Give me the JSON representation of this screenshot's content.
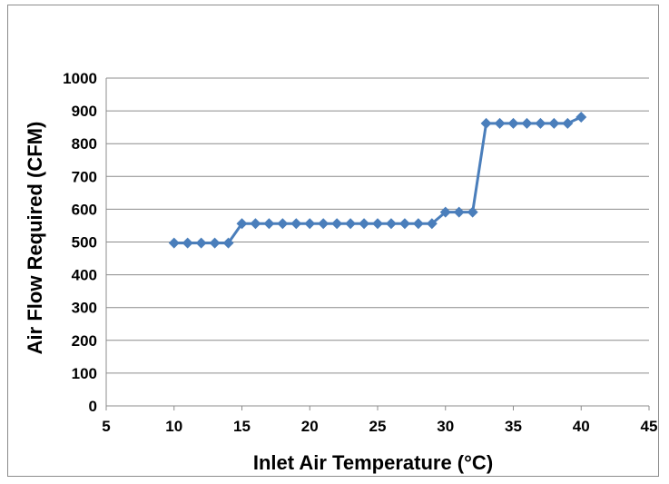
{
  "chart_data": {
    "type": "line",
    "xlabel": "Inlet Air Temperature  (°C)",
    "ylabel": "Air Flow Required (CFM)",
    "xlim": [
      5,
      45
    ],
    "ylim": [
      0,
      1000
    ],
    "xticks": [
      5,
      10,
      15,
      20,
      25,
      30,
      35,
      40,
      45
    ],
    "yticks": [
      0,
      100,
      200,
      300,
      400,
      500,
      600,
      700,
      800,
      900,
      1000
    ],
    "grid": "horizontal",
    "marker": "diamond",
    "series_color": "#4a7ebb",
    "series": [
      {
        "x": [
          10,
          11,
          12,
          13,
          14,
          15,
          16,
          17,
          18,
          19,
          20,
          21,
          22,
          23,
          24,
          25,
          26,
          27,
          28,
          29,
          30,
          31,
          32,
          33,
          34,
          35,
          36,
          37,
          38,
          39,
          40
        ],
        "y": [
          497,
          497,
          497,
          497,
          497,
          556,
          556,
          556,
          556,
          556,
          556,
          556,
          556,
          556,
          556,
          556,
          556,
          556,
          556,
          556,
          591,
          591,
          591,
          862,
          862,
          862,
          862,
          862,
          862,
          862,
          881
        ]
      }
    ]
  }
}
